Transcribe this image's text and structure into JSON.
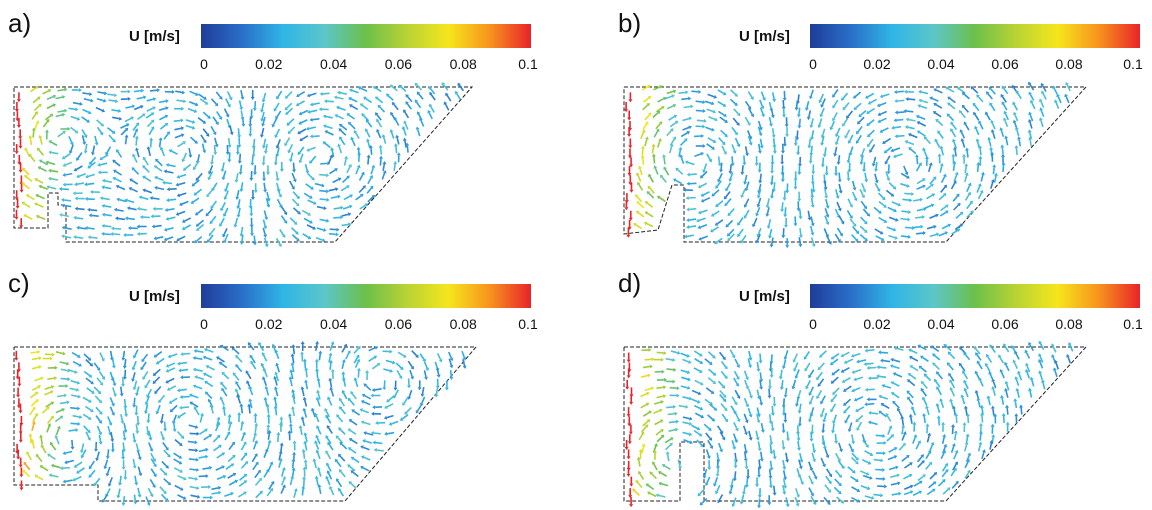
{
  "panels": [
    {
      "id": "a",
      "label": "a)",
      "cbar_label": "U [m/s]",
      "ticks": [
        "0",
        "0.02",
        "0.04",
        "0.06",
        "0.08",
        "0.1"
      ]
    },
    {
      "id": "b",
      "label": "b)",
      "cbar_label": "U [m/s]",
      "ticks": [
        "0",
        "0.02",
        "0.04",
        "0.06",
        "0.08",
        "0.1"
      ]
    },
    {
      "id": "c",
      "label": "c)",
      "cbar_label": "U [m/s]",
      "ticks": [
        "0",
        "0.02",
        "0.04",
        "0.06",
        "0.08",
        "0.1"
      ]
    },
    {
      "id": "d",
      "label": "d)",
      "cbar_label": "U [m/s]",
      "ticks": [
        "0",
        "0.02",
        "0.04",
        "0.06",
        "0.08",
        "0.1"
      ]
    }
  ],
  "colorbar": {
    "min": 0,
    "max": 0.1,
    "colors": [
      "#1f3d99",
      "#2a6fc9",
      "#2fb6e6",
      "#5cc6c8",
      "#6cc04a",
      "#b9d334",
      "#f5e61c",
      "#f7941d",
      "#e8232a"
    ]
  }
}
